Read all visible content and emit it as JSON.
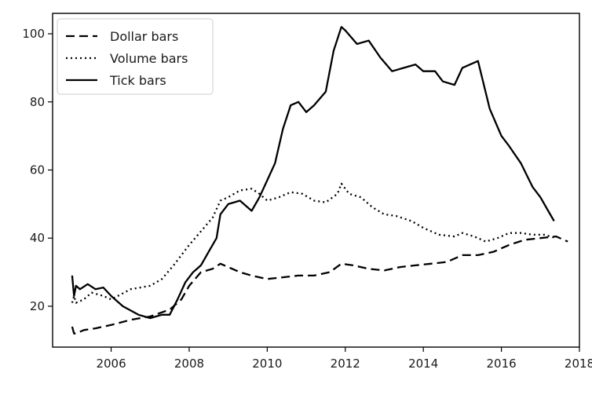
{
  "chart_data": {
    "type": "line",
    "title": "",
    "xlabel": "",
    "ylabel": "",
    "xlim": [
      2004.5,
      2018.0
    ],
    "ylim": [
      8,
      106
    ],
    "xticks": [
      2006,
      2008,
      2010,
      2012,
      2014,
      2016,
      2018
    ],
    "xtick_labels": [
      "2006",
      "2008",
      "2010",
      "2012",
      "2014",
      "2016",
      "2018"
    ],
    "yticks": [
      20,
      40,
      60,
      80,
      100
    ],
    "ytick_labels": [
      "20",
      "40",
      "60",
      "80",
      "100"
    ],
    "grid": false,
    "legend_position": "top-left",
    "series": [
      {
        "name": "Dollar bars",
        "style": "dashed",
        "color": "#000000",
        "x": [
          2005.0,
          2005.05,
          2005.1,
          2005.3,
          2005.6,
          2006.0,
          2006.5,
          2007.0,
          2007.5,
          2007.8,
          2008.0,
          2008.3,
          2008.6,
          2008.8,
          2009.0,
          2009.3,
          2009.6,
          2010.0,
          2010.4,
          2010.8,
          2011.2,
          2011.6,
          2011.9,
          2012.2,
          2012.6,
          2013.0,
          2013.4,
          2013.8,
          2014.2,
          2014.6,
          2015.0,
          2015.4,
          2015.8,
          2016.2,
          2016.6,
          2017.0,
          2017.4,
          2017.7
        ],
        "y": [
          14,
          12,
          12,
          13,
          13.5,
          14.5,
          16,
          17,
          19,
          22,
          26,
          30,
          31,
          32.5,
          31.5,
          30,
          29,
          28,
          28.5,
          29,
          29,
          30,
          32.5,
          32,
          31,
          30.5,
          31.5,
          32,
          32.5,
          33,
          35,
          35,
          36,
          38,
          39.5,
          40,
          40.5,
          39
        ]
      },
      {
        "name": "Volume bars",
        "style": "dotted",
        "color": "#000000",
        "x": [
          2005.0,
          2005.05,
          2005.1,
          2005.3,
          2005.5,
          2005.8,
          2006.0,
          2006.5,
          2007.0,
          2007.3,
          2007.6,
          2008.0,
          2008.3,
          2008.6,
          2008.8,
          2009.0,
          2009.3,
          2009.6,
          2009.8,
          2010.0,
          2010.3,
          2010.6,
          2010.9,
          2011.2,
          2011.5,
          2011.8,
          2011.9,
          2012.1,
          2012.4,
          2012.7,
          2013.0,
          2013.3,
          2013.7,
          2014.0,
          2014.4,
          2014.8,
          2015.0,
          2015.3,
          2015.6,
          2015.9,
          2016.2,
          2016.5,
          2016.8,
          2017.1,
          2017.4
        ],
        "y": [
          21,
          23,
          21,
          22,
          24,
          23,
          22,
          25,
          26,
          28,
          32,
          38,
          42,
          46,
          51,
          52,
          54,
          54.5,
          53,
          51,
          52,
          53.5,
          53,
          51,
          50.5,
          53,
          56,
          53,
          52,
          49,
          47,
          46.5,
          45,
          43,
          41,
          40.5,
          41.5,
          40.5,
          39,
          40,
          41.5,
          41.5,
          41,
          41,
          40
        ]
      },
      {
        "name": "Tick bars",
        "style": "solid",
        "color": "#000000",
        "x": [
          2005.0,
          2005.05,
          2005.1,
          2005.2,
          2005.4,
          2005.6,
          2005.8,
          2006.0,
          2006.3,
          2006.7,
          2007.0,
          2007.3,
          2007.5,
          2007.7,
          2007.9,
          2008.1,
          2008.3,
          2008.5,
          2008.7,
          2008.8,
          2009.0,
          2009.3,
          2009.6,
          2009.8,
          2010.0,
          2010.2,
          2010.4,
          2010.6,
          2010.8,
          2011.0,
          2011.2,
          2011.5,
          2011.7,
          2011.9,
          2012.0,
          2012.3,
          2012.6,
          2012.9,
          2013.2,
          2013.5,
          2013.8,
          2014.0,
          2014.3,
          2014.5,
          2014.8,
          2015.0,
          2015.2,
          2015.4,
          2015.7,
          2016.0,
          2016.2,
          2016.5,
          2016.8,
          2017.0,
          2017.2,
          2017.35
        ],
        "y": [
          29,
          23,
          26,
          25,
          26.5,
          25,
          25.5,
          23,
          20,
          17.5,
          16.5,
          17.5,
          17.5,
          22,
          27,
          30,
          32,
          36,
          40,
          47,
          50,
          51,
          48,
          52,
          57,
          62,
          72,
          79,
          80,
          77,
          79,
          83,
          95,
          102,
          101,
          97,
          98,
          93,
          89,
          90,
          91,
          89,
          89,
          86,
          85,
          90,
          91,
          92,
          78,
          70,
          67,
          62,
          55,
          52,
          48,
          45
        ]
      }
    ]
  }
}
